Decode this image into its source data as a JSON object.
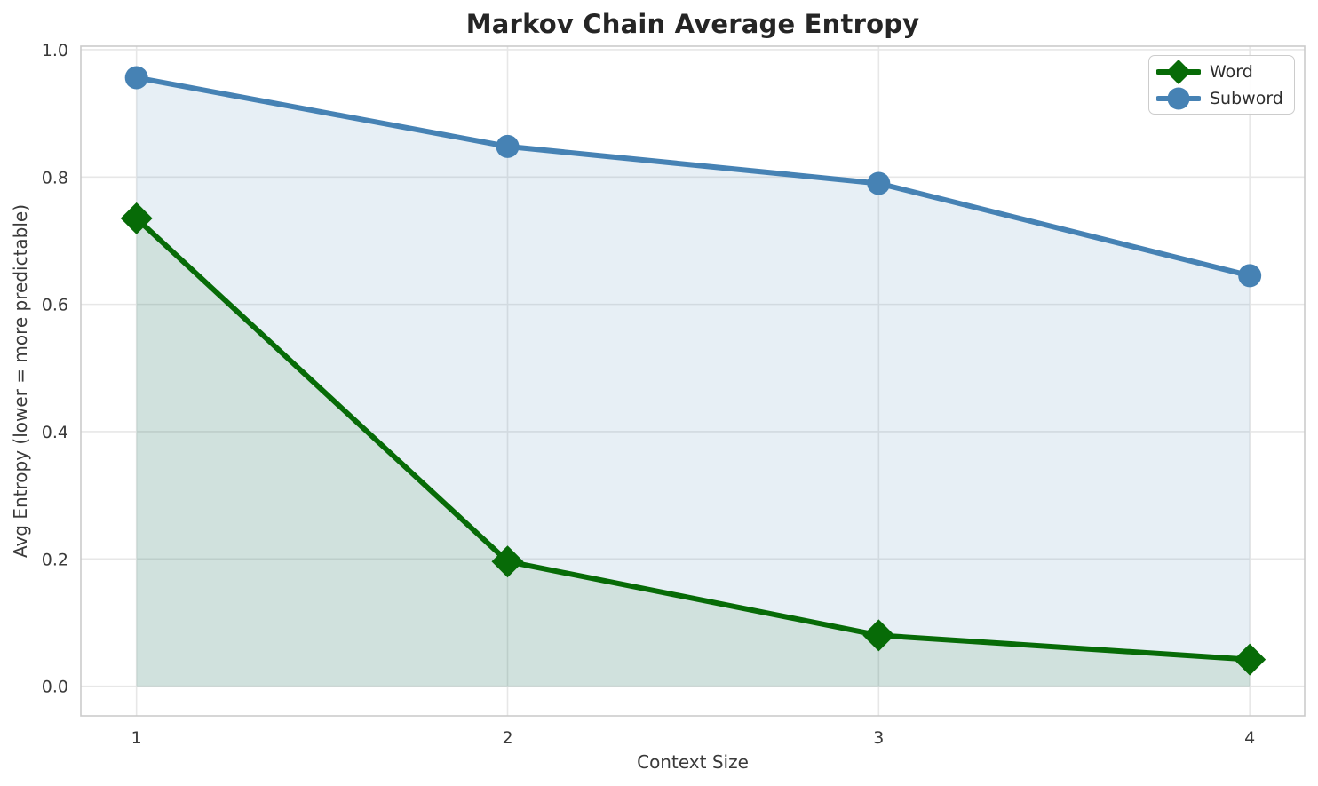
{
  "chart_data": {
    "type": "line",
    "title": "Markov Chain Average Entropy",
    "xlabel": "Context Size",
    "ylabel": "Avg Entropy (lower = more predictable)",
    "x": [
      1,
      2,
      3,
      4
    ],
    "series": [
      {
        "name": "Word",
        "values": [
          0.735,
          0.196,
          0.08,
          0.042
        ],
        "color": "#076B07",
        "marker": "diamond",
        "fill_to_zero": true,
        "fill_alpha": 0.1
      },
      {
        "name": "Subword",
        "values": [
          0.956,
          0.848,
          0.79,
          0.645
        ],
        "color": "#4682B4",
        "marker": "circle",
        "fill_to_zero": true,
        "fill_alpha": 0.13
      }
    ],
    "xtick_labels": [
      "1",
      "2",
      "3",
      "4"
    ],
    "xticks": [
      1,
      2,
      3,
      4
    ],
    "ytick_labels": [
      "0.0",
      "0.2",
      "0.4",
      "0.6",
      "0.8",
      "1.0"
    ],
    "yticks": [
      0.0,
      0.2,
      0.4,
      0.6,
      0.8,
      1.0
    ],
    "xlim": [
      0.85,
      4.148
    ],
    "ylim": [
      -0.0465,
      1.0055
    ],
    "grid": true,
    "legend_position": "upper right",
    "colors": {
      "grid": "#e7e7e7",
      "spine": "#cbcbcb",
      "tick_text": "#3a3a3a"
    }
  },
  "legend": {
    "items": [
      {
        "label": "Word"
      },
      {
        "label": "Subword"
      }
    ]
  }
}
